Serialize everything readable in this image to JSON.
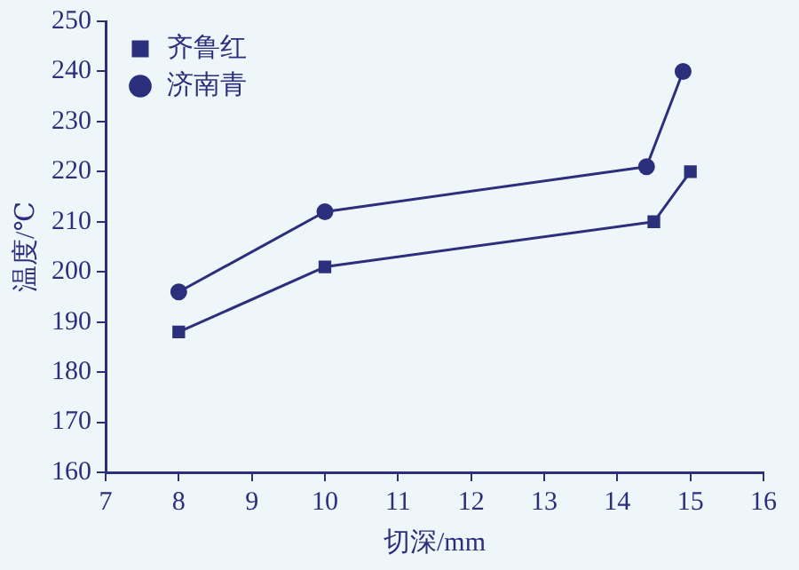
{
  "chart_data": {
    "type": "line",
    "xlabel": "切深/mm",
    "ylabel": "温度/℃",
    "xlim": [
      7,
      16
    ],
    "xticks": [
      7,
      8,
      9,
      10,
      11,
      12,
      13,
      14,
      15,
      16
    ],
    "ylim": [
      160,
      250
    ],
    "yticks": [
      160,
      170,
      180,
      190,
      200,
      210,
      220,
      230,
      240,
      250
    ],
    "series": [
      {
        "name": "齐鲁红",
        "color": "#2b2f7c",
        "marker": "square",
        "x": [
          8,
          10,
          14.5,
          15
        ],
        "values": [
          188,
          201,
          210,
          220
        ]
      },
      {
        "name": "济南青",
        "color": "#2b2f7c",
        "marker": "circle",
        "x": [
          8,
          10,
          14.4,
          14.9
        ],
        "values": [
          196,
          212,
          221,
          240
        ]
      }
    ],
    "legend": "top left",
    "grid": false,
    "line_style": "solid"
  }
}
